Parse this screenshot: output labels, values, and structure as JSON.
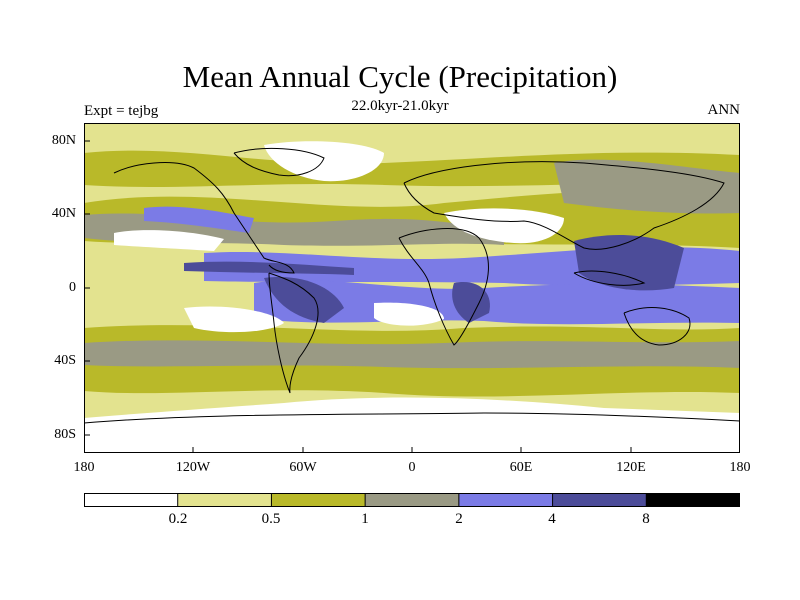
{
  "title": "Mean Annual Cycle (Precipitation)",
  "subtitle": "22.0kyr-21.0kyr",
  "left_label": "Expt = tejbg",
  "right_label": "ANN",
  "lat_labels": [
    "80N",
    "40N",
    "0",
    "40S",
    "80S"
  ],
  "lon_labels": [
    "180",
    "120W",
    "60W",
    "0",
    "60E",
    "120E",
    "180"
  ],
  "colorbar": {
    "labels": [
      "0.2",
      "0.5",
      "1",
      "2",
      "4",
      "8"
    ],
    "colors": [
      "#ffffff",
      "#e3e38f",
      "#b9b929",
      "#9a9a84",
      "#7b7be6",
      "#4c4c99",
      "#000000"
    ]
  }
}
